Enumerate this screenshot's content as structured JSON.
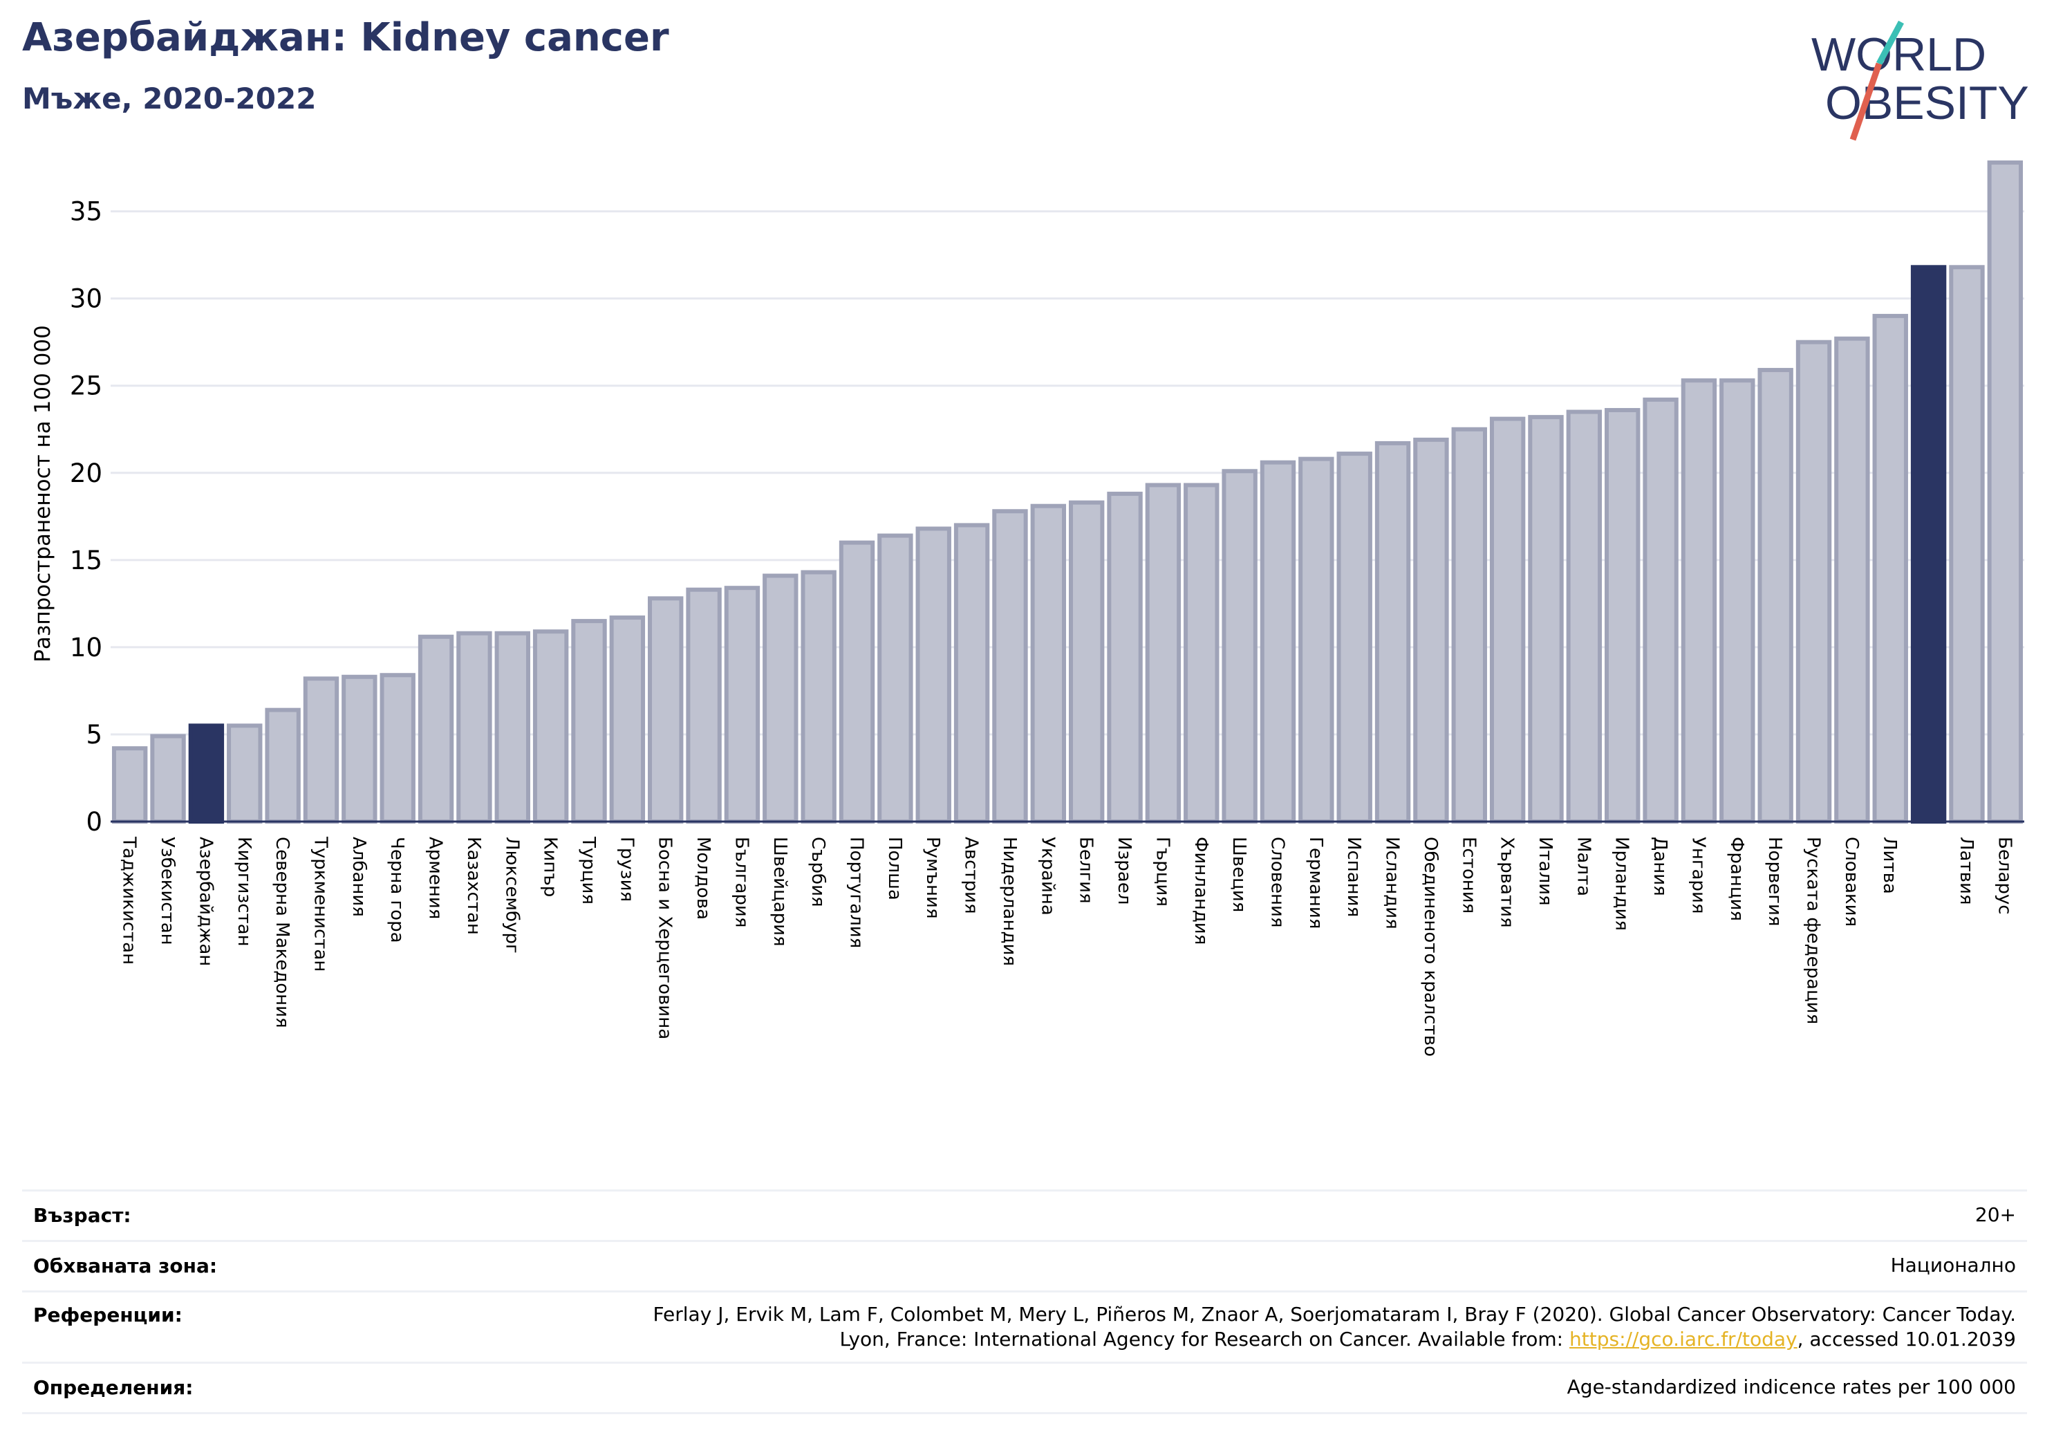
{
  "header": {
    "title": "Азербайджан: Kidney cancer",
    "subtitle": "Мъже, 2020-2022"
  },
  "logo": {
    "line1": "WORLD",
    "line2": "OBESITY",
    "colors": {
      "text": "#2a3563",
      "slash_teal": "#3bbfb5",
      "slash_red": "#e0604f"
    }
  },
  "colors": {
    "bar_default": "#bfc2d0",
    "bar_default_stroke": "#9fa3b8",
    "bar_highlight": "#2a3563",
    "grid": "#e6e8ef",
    "axis": "#2a3563"
  },
  "chart_data": {
    "type": "bar",
    "ylabel": "Разпространеност  на 100 000",
    "ylim": [
      0,
      38
    ],
    "yticks": [
      0,
      5,
      10,
      15,
      20,
      25,
      30,
      35
    ],
    "grid": true,
    "categories": [
      "Таджикистан",
      "Узбекистан",
      "Азербайджан",
      "Киргизстан",
      "Северна Македония",
      "Туркменистан",
      "Албания",
      "Черна гора",
      "Армения",
      "Казахстан",
      "Люксембург",
      "Кипър",
      "Турция",
      "Грузия",
      "Босна и Херцеговина",
      "Молдова",
      "България",
      "Швейцария",
      "Сърбия",
      "Португалия",
      "Полша",
      "Румъния",
      "Австрия",
      "Нидерландия",
      "Украйна",
      "Белгия",
      "Израел",
      "Гърция",
      "Финландия",
      "Швеция",
      "Словения",
      "Германия",
      "Испания",
      "Исландия",
      "Обединеното кралство",
      "Естония",
      "Хърватия",
      "Италия",
      "Малта",
      "Ирландия",
      "Дания",
      "Унгария",
      "Франция",
      "Норвегия",
      "Руската федерация",
      "Словакия",
      "Литва",
      "",
      "Латвия",
      "Беларус"
    ],
    "values": [
      4.2,
      4.9,
      5.5,
      5.5,
      6.4,
      8.2,
      8.3,
      8.4,
      10.6,
      10.8,
      10.8,
      10.9,
      11.5,
      11.7,
      12.8,
      13.3,
      13.4,
      14.1,
      14.3,
      16.0,
      16.4,
      16.8,
      17.0,
      17.8,
      18.1,
      18.3,
      18.8,
      19.3,
      19.3,
      20.1,
      20.6,
      20.8,
      21.1,
      21.7,
      21.9,
      22.5,
      23.1,
      23.2,
      23.5,
      23.6,
      24.2,
      25.3,
      25.3,
      25.9,
      27.5,
      27.7,
      29.0,
      31.8,
      31.8,
      37.8
    ],
    "highlighted": [
      "Азербайджан",
      ""
    ]
  },
  "footer": {
    "age_label": "Възраст:",
    "age_value": "20+",
    "zone_label": "Обхваната зона:",
    "zone_value": "Национално",
    "ref_label": "Референции:",
    "ref_line1": "Ferlay J, Ervik M, Lam F, Colombet M, Mery L, Piñeros M, Znaor A, Soerjomataram I, Bray F (2020). Global Cancer Observatory: Cancer Today.",
    "ref_line2_pre": "Lyon, France: International Agency for Research on Cancer. Available from: ",
    "ref_link": "https://gco.iarc.fr/today",
    "ref_line2_post": ", accessed 10.01.2039",
    "def_label": "Определения:",
    "def_value": "Age-standardized indicence rates per 100 000"
  }
}
